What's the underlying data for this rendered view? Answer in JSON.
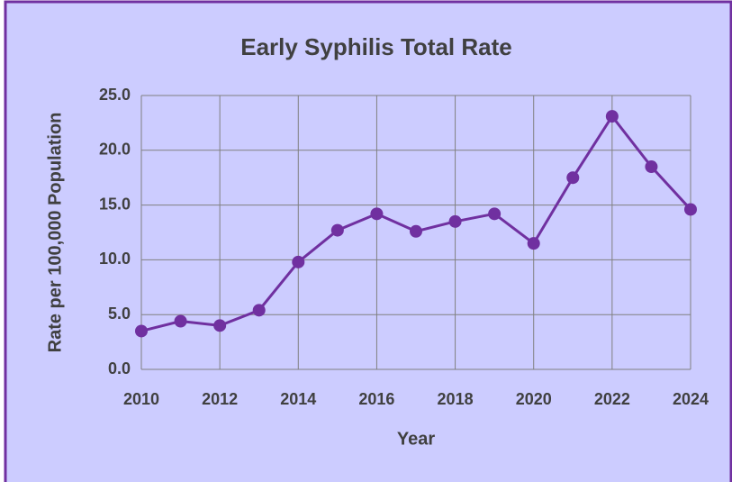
{
  "chart_data": {
    "type": "line",
    "title": "Early Syphilis Total Rate",
    "x_label": "Year",
    "y_label": "Rate per 100,000 Population",
    "x": [
      2010,
      2011,
      2012,
      2013,
      2014,
      2015,
      2016,
      2017,
      2018,
      2019,
      2020,
      2021,
      2022,
      2023,
      2024
    ],
    "series": [
      {
        "name": "Early Syphilis Total Rate",
        "color": "#7030a0",
        "values": [
          3.5,
          4.4,
          4.0,
          5.4,
          9.8,
          12.7,
          14.2,
          12.6,
          13.5,
          14.2,
          11.5,
          17.5,
          23.1,
          18.5,
          14.6
        ]
      }
    ],
    "xlim": [
      2010,
      2024
    ],
    "xticks": [
      2010,
      2012,
      2014,
      2016,
      2018,
      2020,
      2022,
      2024
    ],
    "ylim": [
      0,
      25
    ],
    "yticks": [
      {
        "value": 0,
        "label": "0.0"
      },
      {
        "value": 5,
        "label": "5.0"
      },
      {
        "value": 10,
        "label": "10.0"
      },
      {
        "value": 15,
        "label": "15.0"
      },
      {
        "value": 20,
        "label": "20.0"
      },
      {
        "value": 25,
        "label": "25.0"
      }
    ],
    "grid": true
  }
}
